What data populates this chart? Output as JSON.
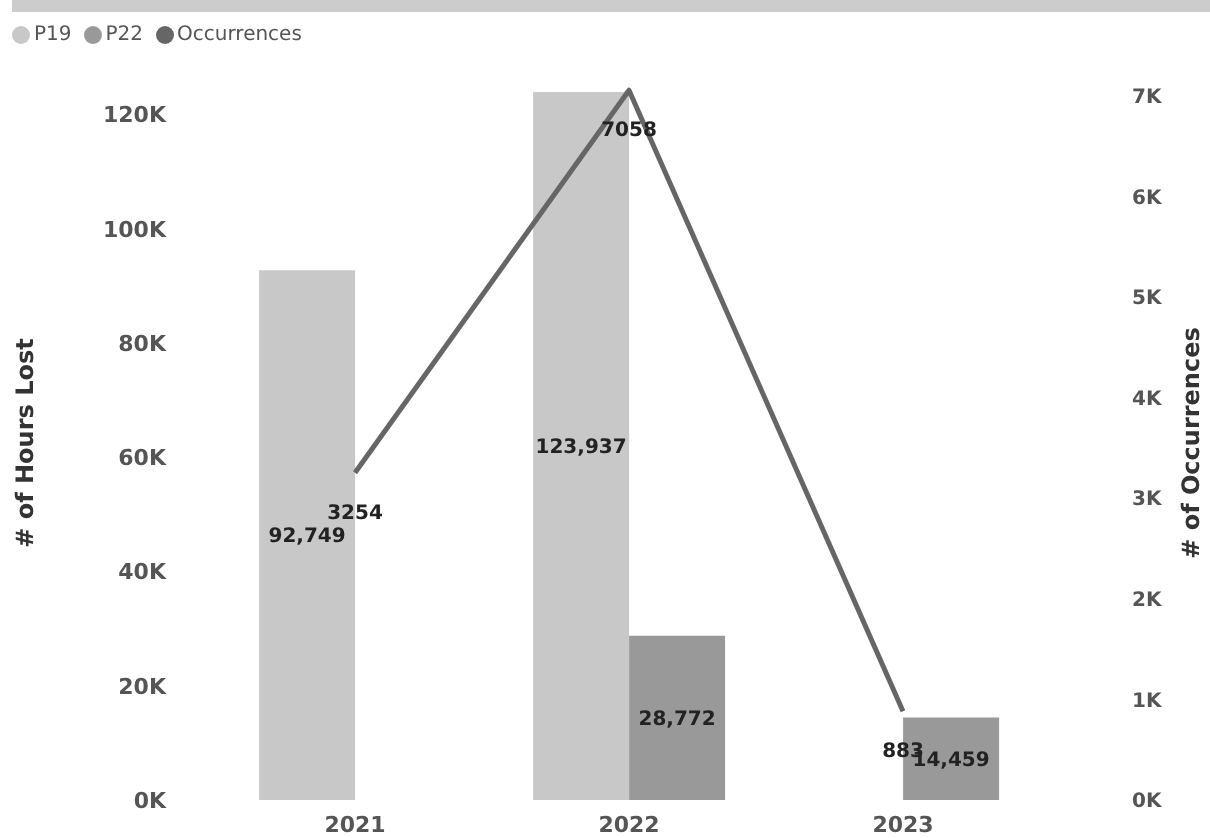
{
  "chart_data": {
    "type": "bar",
    "ylabel": "# of Hours Lost",
    "y2label": "# of Occurrences",
    "categories": [
      "2021",
      "2022",
      "2023"
    ],
    "series": [
      {
        "name": "P19",
        "color": "#c8c8c8",
        "values": [
          92749,
          123937,
          null
        ],
        "value_labels": [
          "92,749",
          "123,937",
          null
        ]
      },
      {
        "name": "P22",
        "color": "#999999",
        "values": [
          null,
          28772,
          14459
        ],
        "value_labels": [
          null,
          "28,772",
          "14,459"
        ]
      },
      {
        "name": "Occurrences",
        "type": "line",
        "axis": "y2",
        "color": "#666666",
        "values": [
          3254,
          7058,
          883
        ],
        "value_labels": [
          "3254",
          "7058",
          "883"
        ]
      }
    ],
    "ylim": [
      0,
      125000
    ],
    "yticks": [
      {
        "value": 0,
        "label": "0K"
      },
      {
        "value": 20000,
        "label": "20K"
      },
      {
        "value": 40000,
        "label": "40K"
      },
      {
        "value": 60000,
        "label": "60K"
      },
      {
        "value": 80000,
        "label": "80K"
      },
      {
        "value": 100000,
        "label": "100K"
      },
      {
        "value": 120000,
        "label": "120K"
      }
    ],
    "y2lim": [
      0,
      7100
    ],
    "y2ticks": [
      {
        "value": 0,
        "label": "0K"
      },
      {
        "value": 1000,
        "label": "1K"
      },
      {
        "value": 2000,
        "label": "2K"
      },
      {
        "value": 3000,
        "label": "3K"
      },
      {
        "value": 4000,
        "label": "4K"
      },
      {
        "value": 5000,
        "label": "5K"
      },
      {
        "value": 6000,
        "label": "6K"
      },
      {
        "value": 7000,
        "label": "7K"
      }
    ],
    "grid": false,
    "legend": "top left"
  }
}
